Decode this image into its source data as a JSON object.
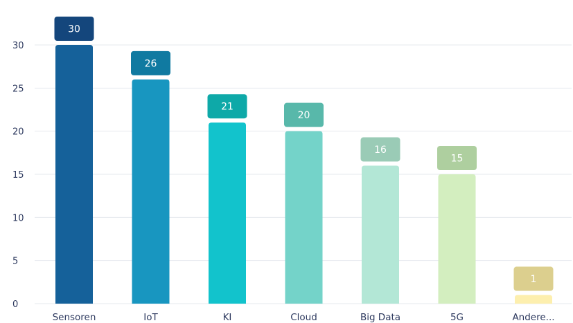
{
  "chart_data": {
    "type": "bar",
    "title": "",
    "xlabel": "",
    "ylabel": "",
    "categories": [
      "Sensoren",
      "IoT",
      "KI",
      "Cloud",
      "Big Data",
      "5G",
      "Andere..."
    ],
    "values": [
      30,
      26,
      21,
      20,
      16,
      15,
      1
    ],
    "ylim": [
      0,
      30
    ],
    "yticks": [
      0,
      5,
      10,
      15,
      20,
      25,
      30
    ],
    "grid": true,
    "legend": "none",
    "colors": [
      "#15619a",
      "#1896c0",
      "#12c3cc",
      "#74d3c9",
      "#b3e7d6",
      "#d3eebf",
      "#fdefae"
    ],
    "label_colors": [
      "#14467c",
      "#107aa1",
      "#0ea9a8",
      "#58b8aa",
      "#9acbb6",
      "#aecf9f",
      "#dccf8e"
    ]
  }
}
